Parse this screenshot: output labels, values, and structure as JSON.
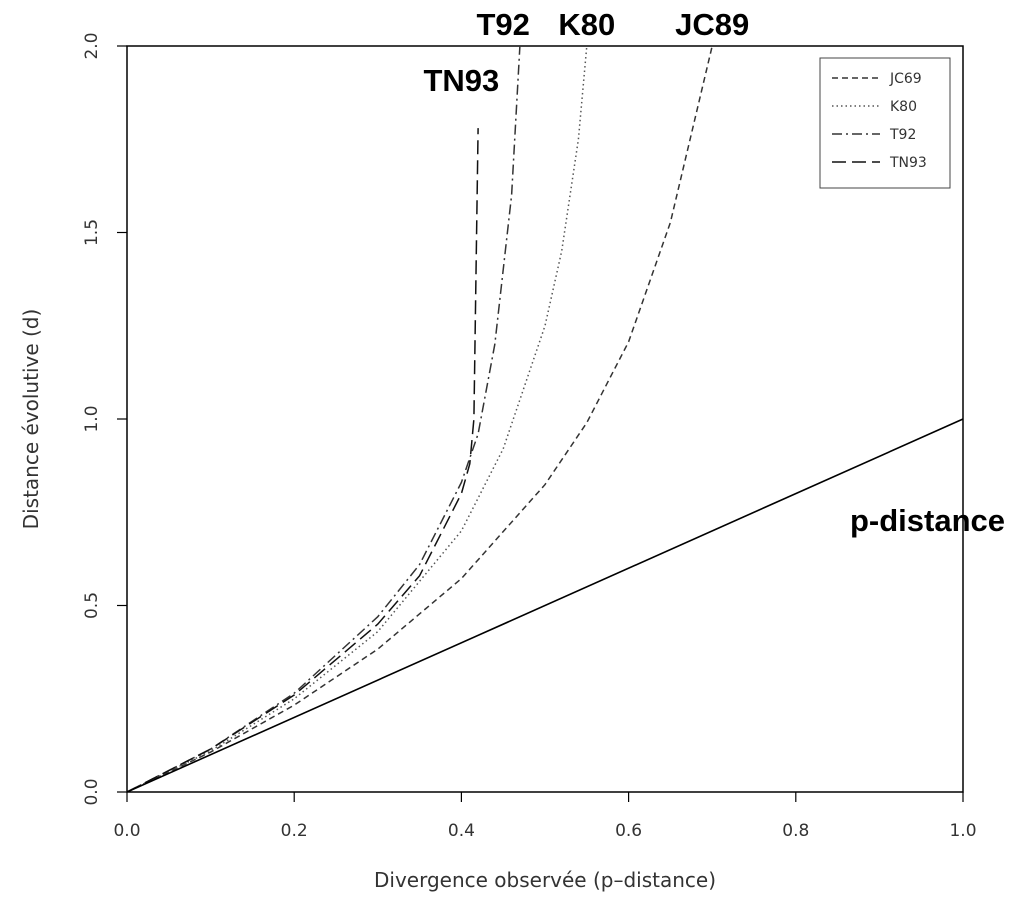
{
  "chart_data": {
    "type": "line",
    "xlabel": "Divergence observée (p–distance)",
    "ylabel": "Distance évolutive (d)",
    "xlim": [
      0,
      1
    ],
    "ylim": [
      0,
      2
    ],
    "x_ticks": [
      "0.0",
      "0.2",
      "0.4",
      "0.6",
      "0.8",
      "1.0"
    ],
    "y_ticks": [
      "0.0",
      "0.5",
      "1.0",
      "1.5",
      "2.0"
    ],
    "grid": false,
    "legend_position": "top-right",
    "series": [
      {
        "name": "JC69",
        "style": "short-dash",
        "color": "#333333",
        "points": [
          [
            0,
            0
          ],
          [
            0.1,
            0.107
          ],
          [
            0.2,
            0.233
          ],
          [
            0.3,
            0.383
          ],
          [
            0.4,
            0.572
          ],
          [
            0.5,
            0.824
          ],
          [
            0.55,
            0.99
          ],
          [
            0.6,
            1.207
          ],
          [
            0.65,
            1.527
          ],
          [
            0.7,
            2.0
          ]
        ]
      },
      {
        "name": "K80",
        "style": "dotted",
        "color": "#555555",
        "points": [
          [
            0,
            0
          ],
          [
            0.1,
            0.11
          ],
          [
            0.2,
            0.25
          ],
          [
            0.3,
            0.43
          ],
          [
            0.4,
            0.7
          ],
          [
            0.45,
            0.92
          ],
          [
            0.5,
            1.25
          ],
          [
            0.52,
            1.45
          ],
          [
            0.54,
            1.75
          ],
          [
            0.55,
            2.0
          ]
        ]
      },
      {
        "name": "T92",
        "style": "dash-dot",
        "color": "#333333",
        "points": [
          [
            0,
            0
          ],
          [
            0.1,
            0.115
          ],
          [
            0.2,
            0.265
          ],
          [
            0.3,
            0.47
          ],
          [
            0.35,
            0.61
          ],
          [
            0.4,
            0.83
          ],
          [
            0.42,
            0.96
          ],
          [
            0.44,
            1.2
          ],
          [
            0.46,
            1.6
          ],
          [
            0.47,
            2.0
          ]
        ]
      },
      {
        "name": "TN93",
        "style": "long-dash",
        "color": "#111111",
        "points": [
          [
            0,
            0
          ],
          [
            0.1,
            0.115
          ],
          [
            0.2,
            0.26
          ],
          [
            0.3,
            0.45
          ],
          [
            0.35,
            0.58
          ],
          [
            0.4,
            0.8
          ],
          [
            0.41,
            0.88
          ],
          [
            0.415,
            1.0
          ],
          [
            0.42,
            1.78
          ]
        ]
      },
      {
        "name": "p-distance",
        "style": "solid",
        "color": "#000000",
        "points": [
          [
            0,
            0
          ],
          [
            1,
            1
          ]
        ]
      }
    ],
    "legend": [
      "JC69",
      "K80",
      "T92",
      "TN93"
    ],
    "annotations": [
      {
        "text": "T92",
        "x": 0.45,
        "y": 2.06
      },
      {
        "text": "K80",
        "x": 0.55,
        "y": 2.06
      },
      {
        "text": "JC89",
        "x": 0.7,
        "y": 2.06
      },
      {
        "text": "TN93",
        "x": 0.4,
        "y": 1.88
      },
      {
        "text": "p-distance",
        "x": 1.0,
        "y": 0.7
      }
    ]
  }
}
